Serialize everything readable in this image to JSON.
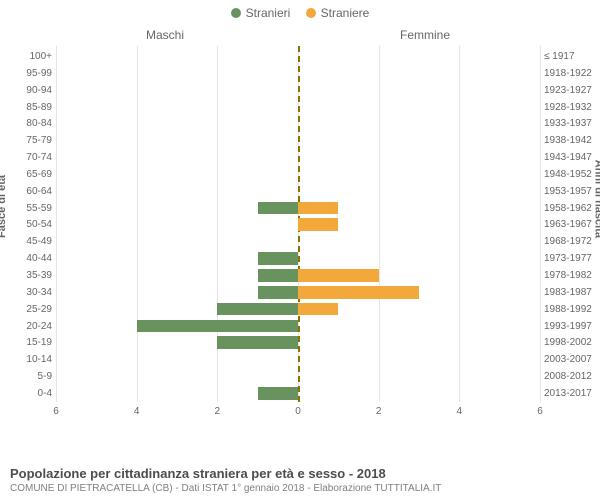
{
  "legend": {
    "male": {
      "label": "Stranieri",
      "color": "#68935e"
    },
    "female": {
      "label": "Straniere",
      "color": "#f2a83b"
    }
  },
  "subtitles": {
    "left": "Maschi",
    "right": "Femmine"
  },
  "axis_titles": {
    "left": "Fasce di età",
    "right": "Anni di nascita"
  },
  "chart": {
    "xlim": 6,
    "xticks": [
      6,
      4,
      2,
      0,
      2,
      4,
      6
    ],
    "grid_color": "#e6e6e6",
    "zero_color": "#8b7500",
    "bar_colors": {
      "male": "#68935e",
      "female": "#f2a83b"
    },
    "rows": [
      {
        "age": "100+",
        "birth": "≤ 1917",
        "m": 0,
        "f": 0
      },
      {
        "age": "95-99",
        "birth": "1918-1922",
        "m": 0,
        "f": 0
      },
      {
        "age": "90-94",
        "birth": "1923-1927",
        "m": 0,
        "f": 0
      },
      {
        "age": "85-89",
        "birth": "1928-1932",
        "m": 0,
        "f": 0
      },
      {
        "age": "80-84",
        "birth": "1933-1937",
        "m": 0,
        "f": 0
      },
      {
        "age": "75-79",
        "birth": "1938-1942",
        "m": 0,
        "f": 0
      },
      {
        "age": "70-74",
        "birth": "1943-1947",
        "m": 0,
        "f": 0
      },
      {
        "age": "65-69",
        "birth": "1948-1952",
        "m": 0,
        "f": 0
      },
      {
        "age": "60-64",
        "birth": "1953-1957",
        "m": 0,
        "f": 0
      },
      {
        "age": "55-59",
        "birth": "1958-1962",
        "m": 1,
        "f": 1
      },
      {
        "age": "50-54",
        "birth": "1963-1967",
        "m": 0,
        "f": 1
      },
      {
        "age": "45-49",
        "birth": "1968-1972",
        "m": 0,
        "f": 0
      },
      {
        "age": "40-44",
        "birth": "1973-1977",
        "m": 1,
        "f": 0
      },
      {
        "age": "35-39",
        "birth": "1978-1982",
        "m": 1,
        "f": 2
      },
      {
        "age": "30-34",
        "birth": "1983-1987",
        "m": 1,
        "f": 3
      },
      {
        "age": "25-29",
        "birth": "1988-1992",
        "m": 2,
        "f": 1
      },
      {
        "age": "20-24",
        "birth": "1993-1997",
        "m": 4,
        "f": 0
      },
      {
        "age": "15-19",
        "birth": "1998-2002",
        "m": 2,
        "f": 0
      },
      {
        "age": "10-14",
        "birth": "2003-2007",
        "m": 0,
        "f": 0
      },
      {
        "age": "5-9",
        "birth": "2008-2012",
        "m": 0,
        "f": 0
      },
      {
        "age": "0-4",
        "birth": "2013-2017",
        "m": 1,
        "f": 0
      }
    ]
  },
  "footer": {
    "title": "Popolazione per cittadinanza straniera per età e sesso - 2018",
    "sub": "COMUNE DI PIETRACATELLA (CB) - Dati ISTAT 1° gennaio 2018 - Elaborazione TUTTITALIA.IT"
  }
}
